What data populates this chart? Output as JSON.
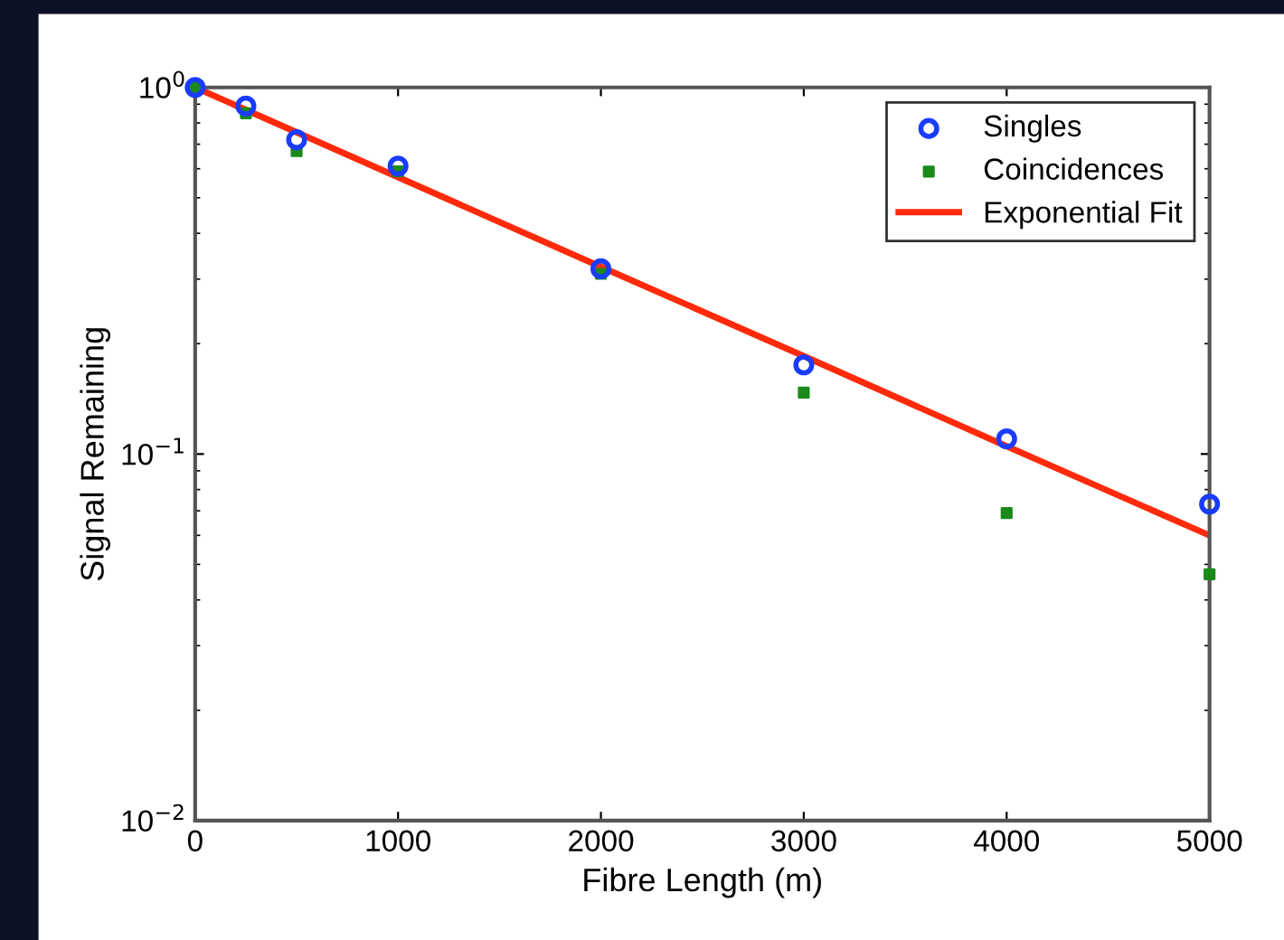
{
  "chart_data": {
    "type": "scatter",
    "xlabel": "Fibre Length (m)",
    "ylabel": "Signal Remaining",
    "log": "y",
    "xlim": [
      0,
      5000
    ],
    "xticks": [
      0,
      1000,
      2000,
      3000,
      4000,
      5000
    ],
    "ylim": [
      0.01,
      1
    ],
    "yticks": [
      {
        "value": 0.01,
        "label": "10$^{−2}$"
      },
      {
        "value": 0.1,
        "label": "10$^{−1}$"
      },
      {
        "value": 1,
        "label": "10$^{0}$"
      }
    ],
    "grid": false,
    "legend": "top right",
    "series": [
      {
        "name": "Singles",
        "marker": "circle",
        "color": "#1a3cff",
        "x": [
          0,
          250,
          500,
          1000,
          2000,
          3000,
          4000,
          5000
        ],
        "values": [
          1.0,
          0.89,
          0.72,
          0.61,
          0.32,
          0.175,
          0.11,
          0.073
        ]
      },
      {
        "name": "Coincidences",
        "marker": "square",
        "color": "#1a8a1a",
        "x": [
          0,
          250,
          500,
          1000,
          2000,
          3000,
          4000,
          5000
        ],
        "values": [
          1.0,
          0.85,
          0.67,
          0.59,
          0.31,
          0.147,
          0.069,
          0.047
        ]
      },
      {
        "name": "Exponential Fit",
        "type": "line",
        "marker": "none",
        "color": "#ff2a0a",
        "x": [
          0,
          1000,
          2000,
          3000,
          4000,
          5000
        ],
        "values": [
          1.0,
          0.569,
          0.324,
          0.185,
          0.105,
          0.06
        ]
      }
    ]
  }
}
